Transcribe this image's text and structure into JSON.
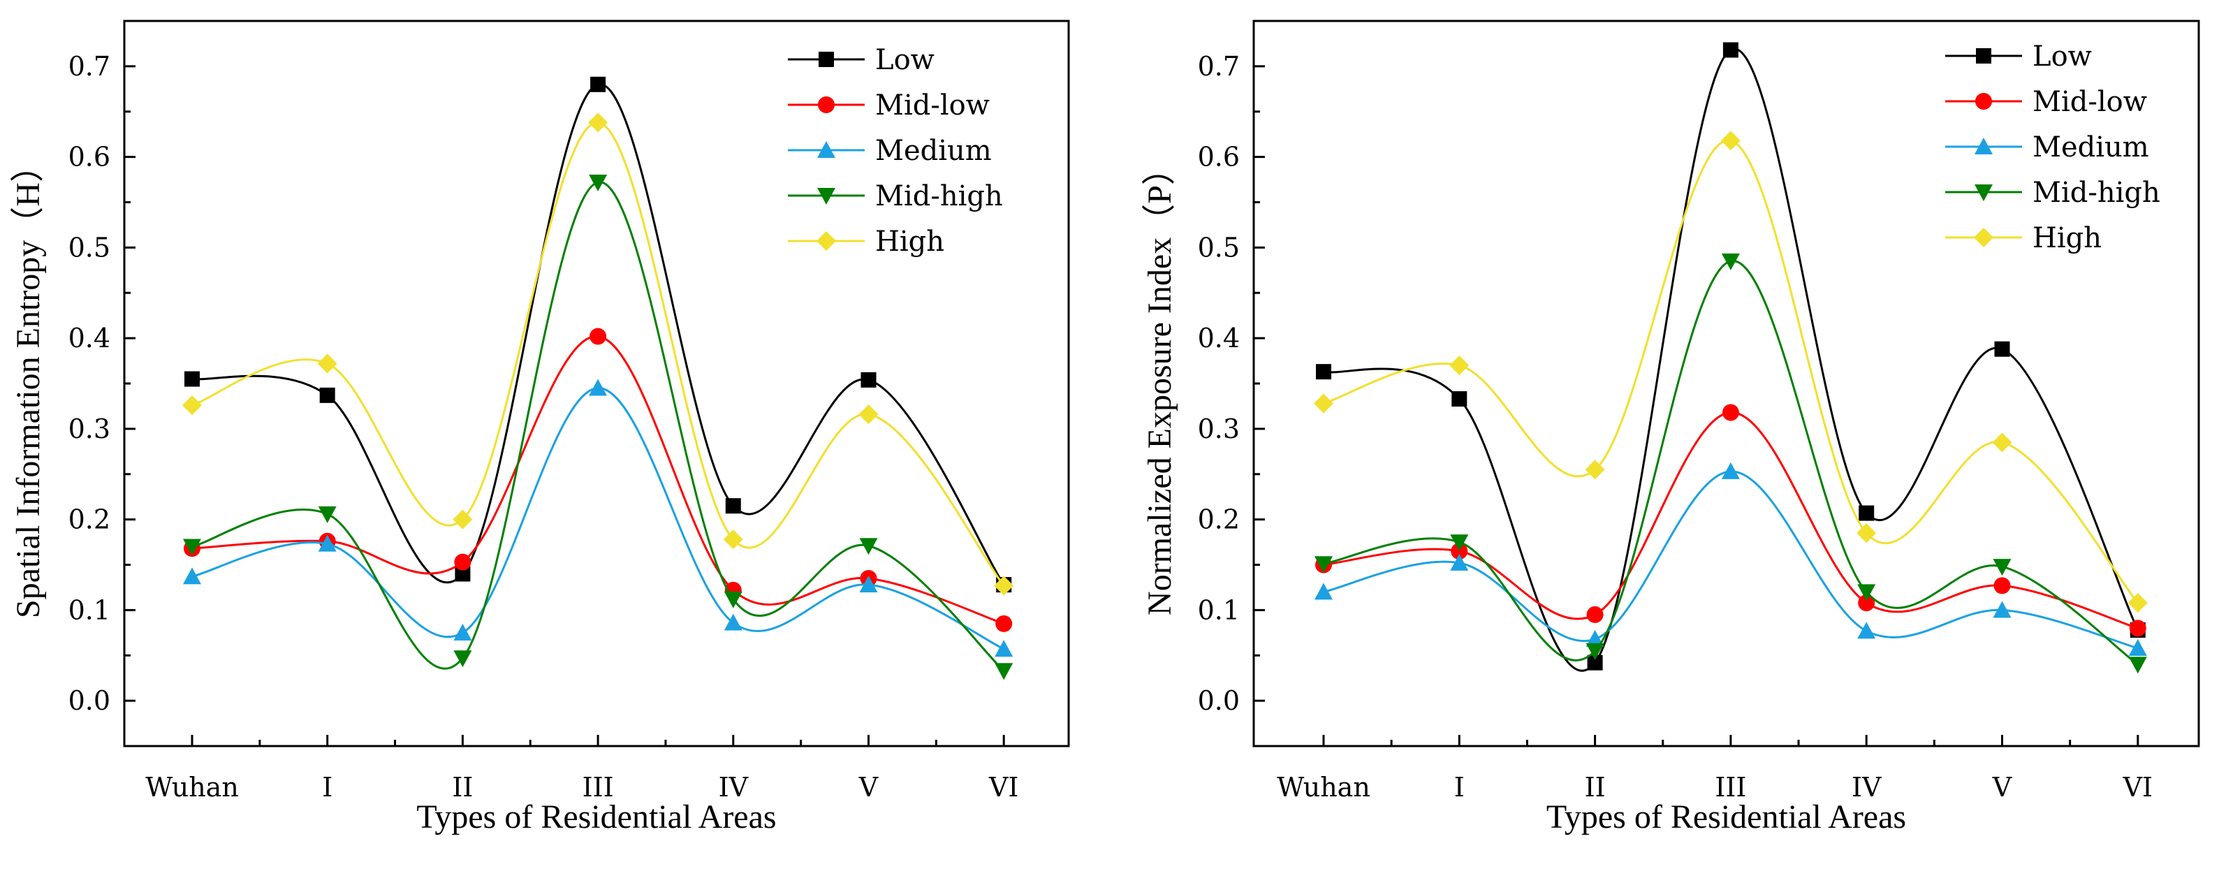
{
  "chart_data": [
    {
      "type": "line",
      "smooth": true,
      "title": "",
      "xlabel": "Types of Residential Areas",
      "ylabel": "Spatial Information Entropy（H）",
      "categories": [
        "Wuhan",
        "I",
        "II",
        "III",
        "IV",
        "V",
        "VI"
      ],
      "ylim": [
        -0.05,
        0.75
      ],
      "yticks": [
        "0.0",
        "0.1",
        "0.2",
        "0.3",
        "0.4",
        "0.5",
        "0.6",
        "0.7"
      ],
      "legend_position": "top-right",
      "series": [
        {
          "name": "Low",
          "color": "#000000",
          "marker": "square",
          "values": [
            0.355,
            0.337,
            0.14,
            0.68,
            0.215,
            0.354,
            0.128
          ]
        },
        {
          "name": "Mid-low",
          "color": "#ff0000",
          "marker": "circle",
          "values": [
            0.168,
            0.176,
            0.153,
            0.402,
            0.122,
            0.135,
            0.085
          ]
        },
        {
          "name": "Medium",
          "color": "#1ba1e2",
          "marker": "triangle-up",
          "values": [
            0.137,
            0.173,
            0.075,
            0.345,
            0.086,
            0.128,
            0.057
          ]
        },
        {
          "name": "Mid-high",
          "color": "#008000",
          "marker": "triangle-down",
          "values": [
            0.17,
            0.206,
            0.047,
            0.572,
            0.112,
            0.171,
            0.033
          ]
        },
        {
          "name": "High",
          "color": "#f2e02e",
          "marker": "diamond",
          "values": [
            0.326,
            0.372,
            0.2,
            0.638,
            0.178,
            0.316,
            0.127
          ]
        }
      ]
    },
    {
      "type": "line",
      "smooth": true,
      "title": "",
      "xlabel": "Types of Residential Areas",
      "ylabel": "Normalized Exposure Index（P）",
      "categories": [
        "Wuhan",
        "I",
        "II",
        "III",
        "IV",
        "V",
        "VI"
      ],
      "ylim": [
        -0.05,
        0.75
      ],
      "yticks": [
        "0.0",
        "0.1",
        "0.2",
        "0.3",
        "0.4",
        "0.5",
        "0.6",
        "0.7"
      ],
      "legend_position": "top-right",
      "series": [
        {
          "name": "Low",
          "color": "#000000",
          "marker": "square",
          "values": [
            0.363,
            0.333,
            0.042,
            0.718,
            0.207,
            0.388,
            0.078
          ]
        },
        {
          "name": "Mid-low",
          "color": "#ff0000",
          "marker": "circle",
          "values": [
            0.15,
            0.165,
            0.095,
            0.318,
            0.108,
            0.127,
            0.08
          ]
        },
        {
          "name": "Medium",
          "color": "#1ba1e2",
          "marker": "triangle-up",
          "values": [
            0.12,
            0.152,
            0.068,
            0.253,
            0.077,
            0.1,
            0.058
          ]
        },
        {
          "name": "Mid-high",
          "color": "#008000",
          "marker": "triangle-down",
          "values": [
            0.151,
            0.175,
            0.055,
            0.485,
            0.12,
            0.148,
            0.04
          ]
        },
        {
          "name": "High",
          "color": "#f2e02e",
          "marker": "diamond",
          "values": [
            0.328,
            0.37,
            0.255,
            0.618,
            0.185,
            0.285,
            0.108
          ]
        }
      ]
    }
  ]
}
